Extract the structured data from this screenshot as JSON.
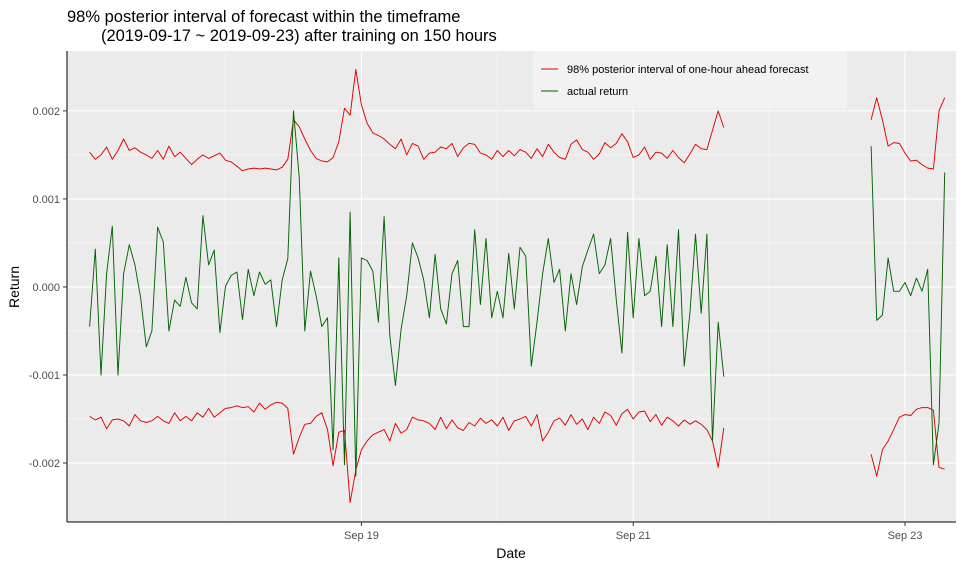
{
  "chart_data": {
    "type": "line",
    "title_line1": "98% posterior interval of forecast within the timeframe",
    "title_line2": "(2019-09-17 ~ 2019-09-23) after training on 150 hours",
    "xlabel": "Date",
    "ylabel": "Return",
    "x_ticks": [
      {
        "label": "Sep 19",
        "hours": 48
      },
      {
        "label": "Sep 21",
        "hours": 96
      },
      {
        "label": "Sep 23",
        "hours": 144
      }
    ],
    "xlim_hours": [
      -4,
      153
    ],
    "ylim": [
      -0.00267,
      0.00268
    ],
    "y_ticks": [
      {
        "label": "0.002",
        "value": 0.002
      },
      {
        "label": "0.001",
        "value": 0.001
      },
      {
        "label": "0.000",
        "value": 0.0
      },
      {
        "label": "-0.001",
        "value": -0.001
      },
      {
        "label": "-0.002",
        "value": -0.002
      }
    ],
    "grid": true,
    "legend_position": "top-right",
    "colors": {
      "interval": "#e00000",
      "actual": "#006400",
      "panel": "#ebebeb",
      "grid": "#ffffff"
    },
    "series": [
      {
        "name": "98% posterior interval of one-hour ahead forecast",
        "role": "interval-upper",
        "segments": [
          {
            "x_start": 0,
            "values": [
              0.00153,
              0.00145,
              0.0015,
              0.00159,
              0.00145,
              0.00155,
              0.00168,
              0.00155,
              0.00158,
              0.00153,
              0.0015,
              0.00146,
              0.00155,
              0.00145,
              0.0016,
              0.00148,
              0.00153,
              0.00146,
              0.00139,
              0.00145,
              0.0015,
              0.00146,
              0.00149,
              0.00152,
              0.00144,
              0.00142,
              0.00137,
              0.00132,
              0.00134,
              0.00135,
              0.00134,
              0.00135,
              0.00134,
              0.00133,
              0.00136,
              0.00145,
              0.0019,
              0.00182,
              0.00168,
              0.00155,
              0.00146,
              0.00143,
              0.00142,
              0.00147,
              0.00165,
              0.00203,
              0.00195,
              0.00247,
              0.00207,
              0.00186,
              0.00175,
              0.00172,
              0.00168,
              0.00162,
              0.00157,
              0.00168,
              0.0015,
              0.00163,
              0.0016,
              0.00145,
              0.00152,
              0.00153,
              0.00159,
              0.00157,
              0.00163,
              0.00148,
              0.00158,
              0.00163,
              0.00162,
              0.00152,
              0.0015,
              0.00145,
              0.00155,
              0.00148,
              0.00155,
              0.00149,
              0.00156,
              0.00153,
              0.00146,
              0.00157,
              0.00148,
              0.00162,
              0.00153,
              0.00147,
              0.00145,
              0.00162,
              0.00167,
              0.00156,
              0.00153,
              0.00145,
              0.00151,
              0.00164,
              0.00158,
              0.00163,
              0.00174,
              0.00165,
              0.00147,
              0.0015,
              0.00159,
              0.00145,
              0.00153,
              0.00152,
              0.00146,
              0.00155,
              0.00147,
              0.00141,
              0.00151,
              0.00162,
              0.00157,
              0.00156,
              0.00178,
              0.002,
              0.00181
            ]
          },
          {
            "x_start": 138,
            "values": [
              0.0019,
              0.00215,
              0.0019,
              0.0016,
              0.00164,
              0.00163,
              0.00152,
              0.00143,
              0.00144,
              0.00139,
              0.00135,
              0.00134,
              0.002,
              0.00215
            ]
          }
        ]
      },
      {
        "name": "",
        "role": "interval-lower",
        "segments": [
          {
            "x_start": 0,
            "values": [
              -0.00147,
              -0.00151,
              -0.00148,
              -0.00161,
              -0.00151,
              -0.0015,
              -0.00152,
              -0.00158,
              -0.00145,
              -0.00152,
              -0.00154,
              -0.00152,
              -0.00147,
              -0.00152,
              -0.00155,
              -0.00143,
              -0.00152,
              -0.00147,
              -0.00152,
              -0.00143,
              -0.00148,
              -0.00138,
              -0.00148,
              -0.00143,
              -0.00138,
              -0.00137,
              -0.00135,
              -0.00137,
              -0.00136,
              -0.00142,
              -0.00132,
              -0.00139,
              -0.00134,
              -0.00131,
              -0.00132,
              -0.00138,
              -0.0019,
              -0.00171,
              -0.00156,
              -0.00155,
              -0.00147,
              -0.00143,
              -0.00162,
              -0.00203,
              -0.00165,
              -0.00163,
              -0.00245,
              -0.00208,
              -0.00185,
              -0.00175,
              -0.00168,
              -0.00165,
              -0.00162,
              -0.00175,
              -0.00155,
              -0.00166,
              -0.00162,
              -0.00148,
              -0.00151,
              -0.00152,
              -0.00155,
              -0.00162,
              -0.00148,
              -0.00161,
              -0.00151,
              -0.0016,
              -0.00163,
              -0.00154,
              -0.00158,
              -0.00149,
              -0.00155,
              -0.00151,
              -0.00158,
              -0.00148,
              -0.00163,
              -0.00152,
              -0.0015,
              -0.00147,
              -0.00158,
              -0.00145,
              -0.00175,
              -0.00165,
              -0.00152,
              -0.00149,
              -0.00157,
              -0.00145,
              -0.00156,
              -0.0015,
              -0.00162,
              -0.00148,
              -0.00155,
              -0.00142,
              -0.00146,
              -0.00157,
              -0.00144,
              -0.00139,
              -0.0015,
              -0.00142,
              -0.00141,
              -0.00153,
              -0.00145,
              -0.00157,
              -0.00148,
              -0.00152,
              -0.00158,
              -0.00151,
              -0.00156,
              -0.00152,
              -0.00156,
              -0.00162,
              -0.00175,
              -0.00205,
              -0.0016
            ]
          },
          {
            "x_start": 138,
            "values": [
              -0.0019,
              -0.00215,
              -0.00185,
              -0.00175,
              -0.00162,
              -0.00148,
              -0.00145,
              -0.00146,
              -0.00139,
              -0.00137,
              -0.00137,
              -0.0014,
              -0.00205,
              -0.00207
            ]
          }
        ]
      },
      {
        "name": "actual return",
        "role": "actual",
        "segments": [
          {
            "x_start": 0,
            "values": [
              -0.00045,
              0.00043,
              -0.001,
              0.00015,
              0.00069,
              -0.001,
              0.00015,
              0.00048,
              0.00025,
              -0.00012,
              -0.00068,
              -0.0005,
              0.00068,
              0.00051,
              -0.0005,
              -0.00015,
              -0.00022,
              0.00011,
              -0.00018,
              -0.00025,
              0.00081,
              0.00025,
              0.00042,
              -0.00052,
              1e-05,
              0.00013,
              0.00017,
              -0.00037,
              0.0002,
              -0.0001,
              0.00017,
              3e-05,
              8e-05,
              -0.00045,
              8e-05,
              0.00032,
              0.002,
              0.00125,
              -0.0005,
              0.00018,
              -0.0001,
              -0.00045,
              -0.00035,
              -0.00185,
              0.00033,
              -0.00202,
              0.00085,
              -0.00215,
              0.00033,
              0.0003,
              0.00018,
              -0.0004,
              0.0008,
              -0.00055,
              -0.00112,
              -0.00048,
              -0.0001,
              0.0005,
              0.00033,
              8e-05,
              -0.00035,
              0.00037,
              -0.00025,
              -0.00042,
              0.00015,
              0.0003,
              -0.00045,
              -0.00045,
              0.00065,
              -0.0002,
              0.00055,
              -0.00035,
              -5e-05,
              -0.00035,
              0.00038,
              -0.00025,
              0.00045,
              0.00035,
              -0.0009,
              -0.0004,
              0.00015,
              0.00055,
              5e-05,
              0.0002,
              -0.0005,
              0.00015,
              -0.0002,
              0.00023,
              0.00042,
              0.0006,
              0.00015,
              0.00025,
              0.00055,
              -0.00015,
              -0.00075,
              0.00062,
              -0.00035,
              0.00055,
              -0.0001,
              -5e-05,
              0.00035,
              -0.00045,
              0.00048,
              -0.00045,
              0.00065,
              -0.0009,
              -0.0003,
              0.0006,
              -0.0003,
              0.0006,
              -0.00175,
              -0.0004,
              -0.00102
            ]
          },
          {
            "x_start": 138,
            "values": [
              0.0016,
              -0.00038,
              -0.00032,
              0.00033,
              -5e-05,
              -5e-05,
              5e-05,
              -0.0001,
              0.0001,
              -5e-05,
              0.0002,
              -0.00202,
              -0.00155,
              0.0013
            ]
          }
        ]
      }
    ]
  }
}
